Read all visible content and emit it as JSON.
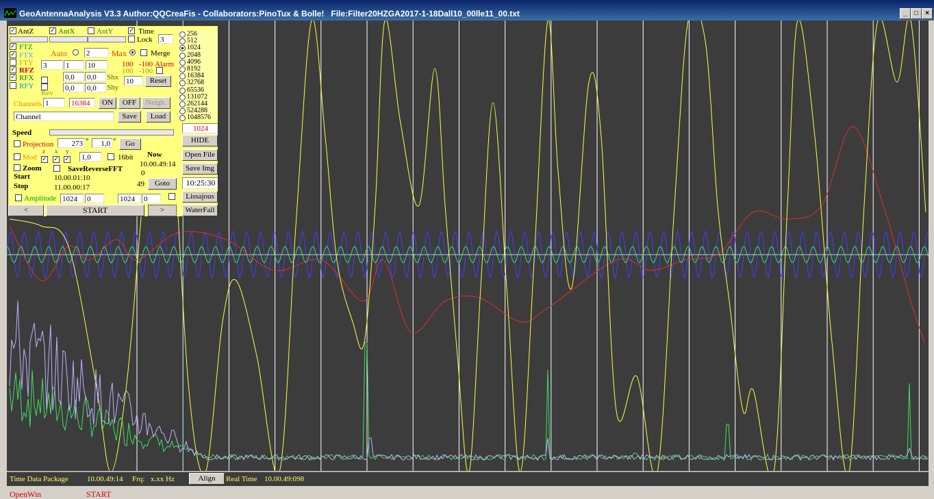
{
  "window": {
    "title": "GeoAntennaAnalysis V3.3 Author:QQCreaFis - Collaborators:PinoTux & Bolle!   File:Filter20HZGA2017-1-18Dall10_00lle11_00.txt"
  },
  "panel": {
    "ant_z": "AntZ",
    "ant_x": "AntX",
    "ant_y": "AntY",
    "time": "Time",
    "lock": "Lock",
    "lock_value": "3",
    "ftz": "FTZ",
    "ftx": "FTX",
    "fty": "FTY",
    "rfz": "RFZ",
    "rfx": "RFX",
    "rfy": "RFY",
    "auto": "Auto",
    "auto_value": "2",
    "max": "Max",
    "merge": "Merge",
    "fields": [
      "3",
      "1",
      "10"
    ],
    "alarm_high": "100",
    "alarm_low": "-100",
    "alarm": "Alarm",
    "alarm_high2": "100",
    "alarm_low2": "-100",
    "shift_fields": [
      "0,0",
      "0,0",
      "0,0",
      "0,0"
    ],
    "shx": "Shx",
    "shy": "Shy",
    "shift_value": "10",
    "reset": "Reset",
    "rev": "Rev",
    "channels": "Channels",
    "channel_from": "1",
    "channel_to": "16384",
    "on": "ON",
    "off": "OFF",
    "neigh": "Neigh.",
    "channel_name": "Channel",
    "save": "Save",
    "load": "Load",
    "speed": "Speed",
    "projection": "Projection",
    "projection_angle": "273",
    "degree": "°",
    "projection_scale": "1,0",
    "degree2": "°",
    "go": "Go",
    "mod": "Mod",
    "z": "z",
    "x": "x",
    "y": "y",
    "mod_value": "1,0",
    "bit16": "16bit",
    "now": "Now",
    "zoom": "Zoom",
    "save_reverse_fft": "SaveReverseFFT",
    "now_time": "10.00.49:14",
    "now_value": "0",
    "start": "Start",
    "start_time": "10.00.01:10",
    "stop": "Stop",
    "stop_time": "11.00.00:17",
    "position": "49",
    "goto": "Goto",
    "amplitude": "Amplitude",
    "amp_fields": [
      "1024",
      "0",
      "1024",
      "0"
    ],
    "prev": "<",
    "start_button": "START",
    "next": ">"
  },
  "fft_sizes": [
    "256",
    "512",
    "1024",
    "2048",
    "4096",
    "8192",
    "16384",
    "32768",
    "65536",
    "131072",
    "262144",
    "524288",
    "1048576"
  ],
  "fft_size": "1024",
  "buttons": {
    "hide": "HIDE",
    "open_file": "Open File",
    "save_img": "Save Img",
    "clock": "10:25:30",
    "lissajous": "Lissajous",
    "waterfall": "WaterFall"
  },
  "status_bar": {
    "label": "Time Data Package",
    "time": "10.00.49:14",
    "frq": "Frq:",
    "frq_value": "x.xx Hz",
    "align": "Align",
    "real_time": "Real Time",
    "real_time_value": "10.00.49:098"
  },
  "taskbar": {
    "open_win": "OpenWin",
    "start": "START"
  }
}
